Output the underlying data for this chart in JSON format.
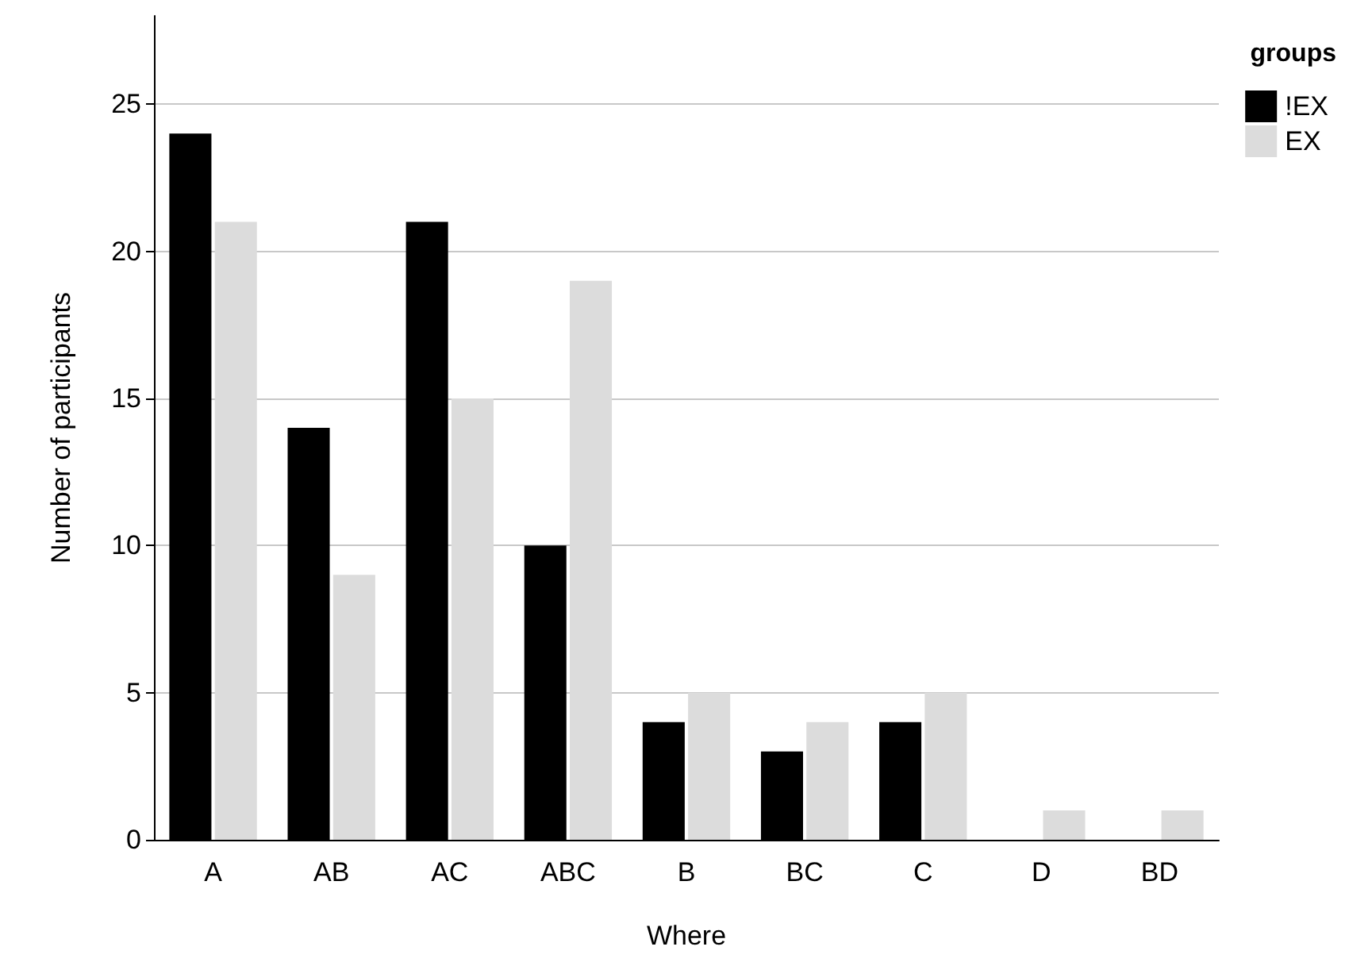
{
  "chart_data": {
    "type": "bar",
    "xlabel": "Where",
    "ylabel": "Number of participants",
    "legend_title": "groups",
    "categories": [
      "A",
      "AB",
      "AC",
      "ABC",
      "B",
      "BC",
      "C",
      "D",
      "BD"
    ],
    "series": [
      {
        "name": "!EX",
        "color": "#000000",
        "values": [
          24,
          14,
          21,
          10,
          4,
          3,
          4,
          0,
          0
        ]
      },
      {
        "name": "EX",
        "color": "#dcdcdc",
        "values": [
          21,
          9,
          15,
          19,
          5,
          4,
          5,
          1,
          1
        ]
      }
    ],
    "ylim": [
      0,
      28
    ],
    "yticks": [
      0,
      5,
      10,
      15,
      20,
      25
    ],
    "grid": "y",
    "legend": "top right"
  }
}
